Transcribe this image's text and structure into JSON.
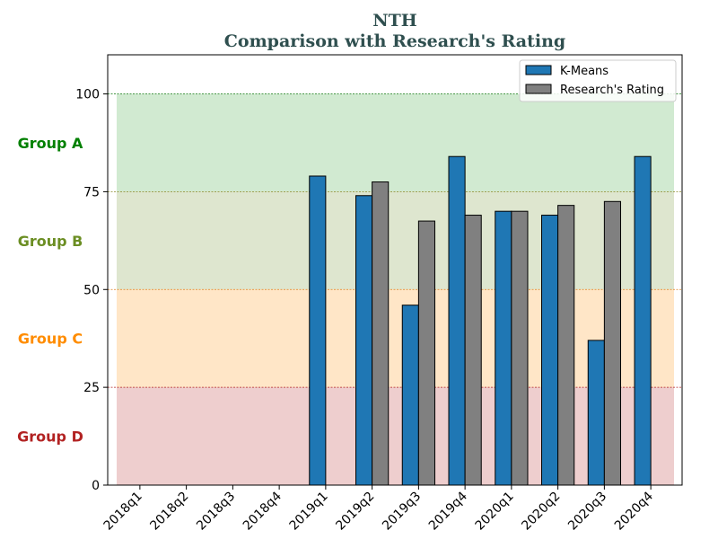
{
  "chart_data": {
    "type": "bar",
    "title": "NTH",
    "subtitle": "Comparison with Research's Rating",
    "categories": [
      "2018q1",
      "2018q2",
      "2018q3",
      "2018q4",
      "2019q1",
      "2019q2",
      "2019q3",
      "2019q4",
      "2020q1",
      "2020q2",
      "2020q3",
      "2020q4"
    ],
    "series": [
      {
        "name": "K-Means",
        "color": "#1f77b4",
        "values": [
          null,
          null,
          null,
          null,
          79,
          74,
          46,
          84,
          70,
          69,
          37,
          84
        ]
      },
      {
        "name": "Research's Rating",
        "color": "#808080",
        "values": [
          null,
          null,
          null,
          null,
          null,
          77.5,
          67.5,
          69,
          70,
          71.5,
          72.5,
          null
        ]
      }
    ],
    "ylim": [
      0,
      110
    ],
    "yticks": [
      0,
      25,
      50,
      75,
      100
    ],
    "xlabel": "",
    "ylabel": "",
    "legend_position": "top-right",
    "bands": [
      {
        "label": "Group A",
        "from": 75,
        "to": 100,
        "fill": "#2ca02c",
        "label_color": "#008000",
        "line_color": "#2e8b2e"
      },
      {
        "label": "Group B",
        "from": 50,
        "to": 75,
        "fill": "#6b8e23",
        "label_color": "#6b8e23",
        "line_color": "#8a8a2a"
      },
      {
        "label": "Group C",
        "from": 25,
        "to": 50,
        "fill": "#ff8c00",
        "label_color": "#ff8c00",
        "line_color": "#e08020"
      },
      {
        "label": "Group D",
        "from": 0,
        "to": 25,
        "fill": "#b22222",
        "label_color": "#b22222",
        "line_color": "#b22222"
      }
    ]
  }
}
